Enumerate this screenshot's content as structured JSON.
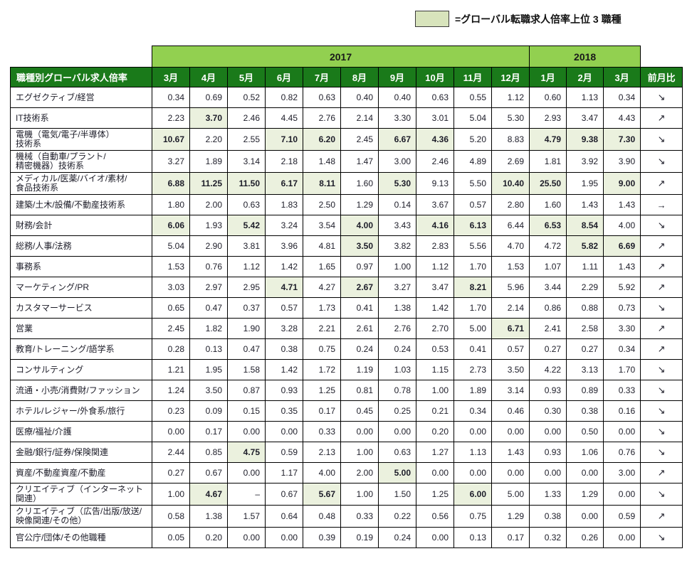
{
  "legend": {
    "label": "=グローバル転職求人倍率上位 3 職種"
  },
  "chart_data": {
    "type": "table",
    "title": "職種別グローバル求人倍率",
    "year_groups": [
      {
        "label": "2017",
        "cols": 10
      },
      {
        "label": "2018",
        "cols": 3
      }
    ],
    "month_headers": [
      "3月",
      "4月",
      "5月",
      "6月",
      "7月",
      "8月",
      "9月",
      "10月",
      "11月",
      "12月",
      "1月",
      "2月",
      "3月"
    ],
    "mom_header": "前月比",
    "rows": [
      {
        "label": "エグゼクティブ/経営",
        "values": [
          "0.34",
          "0.69",
          "0.52",
          "0.82",
          "0.63",
          "0.40",
          "0.40",
          "0.63",
          "0.55",
          "1.12",
          "0.60",
          "1.13",
          "0.34"
        ],
        "highlights": [],
        "trend": "↘"
      },
      {
        "label": "IT技術系",
        "values": [
          "2.23",
          "3.70",
          "2.46",
          "4.45",
          "2.76",
          "2.14",
          "3.30",
          "3.01",
          "5.04",
          "5.30",
          "2.93",
          "3.47",
          "4.43"
        ],
        "highlights": [
          1
        ],
        "trend": "↗"
      },
      {
        "label": "電機（電気/電子/半導体）\n技術系",
        "values": [
          "10.67",
          "2.20",
          "2.55",
          "7.10",
          "6.20",
          "2.45",
          "6.67",
          "4.36",
          "5.20",
          "8.83",
          "4.79",
          "9.38",
          "7.30"
        ],
        "highlights": [
          0,
          3,
          4,
          6,
          7,
          10,
          11,
          12
        ],
        "trend": "↘"
      },
      {
        "label": "機械（自動車/プラント/\n精密機器）技術系",
        "values": [
          "3.27",
          "1.89",
          "3.14",
          "2.18",
          "1.48",
          "1.47",
          "3.00",
          "2.46",
          "4.89",
          "2.69",
          "1.81",
          "3.92",
          "3.90"
        ],
        "highlights": [],
        "trend": "↘"
      },
      {
        "label": "メディカル/医薬/バイオ/素材/\n食品技術系",
        "values": [
          "6.88",
          "11.25",
          "11.50",
          "6.17",
          "8.11",
          "1.60",
          "5.30",
          "9.13",
          "5.50",
          "10.40",
          "25.50",
          "1.95",
          "9.00"
        ],
        "highlights": [
          0,
          1,
          2,
          3,
          4,
          6,
          9,
          10,
          12
        ],
        "trend": "↗"
      },
      {
        "label": "建築/土木/設備/不動産技術系",
        "values": [
          "1.80",
          "2.00",
          "0.63",
          "1.83",
          "2.50",
          "1.29",
          "0.14",
          "3.67",
          "0.57",
          "2.80",
          "1.60",
          "1.43",
          "1.43"
        ],
        "highlights": [],
        "trend": "→"
      },
      {
        "label": "財務/会計",
        "values": [
          "6.06",
          "1.93",
          "5.42",
          "3.24",
          "3.54",
          "4.00",
          "3.43",
          "4.16",
          "6.13",
          "6.44",
          "6.53",
          "8.54",
          "4.00"
        ],
        "highlights": [
          0,
          2,
          5,
          7,
          8,
          10,
          11
        ],
        "trend": "↘"
      },
      {
        "label": "総務/人事/法務",
        "values": [
          "5.04",
          "2.90",
          "3.81",
          "3.96",
          "4.81",
          "3.50",
          "3.82",
          "2.83",
          "5.56",
          "4.70",
          "4.72",
          "5.82",
          "6.69"
        ],
        "highlights": [
          5,
          11,
          12
        ],
        "trend": "↗"
      },
      {
        "label": "事務系",
        "values": [
          "1.53",
          "0.76",
          "1.12",
          "1.42",
          "1.65",
          "0.97",
          "1.00",
          "1.12",
          "1.70",
          "1.53",
          "1.07",
          "1.11",
          "1.43"
        ],
        "highlights": [],
        "trend": "↗"
      },
      {
        "label": "マーケティング/PR",
        "values": [
          "3.03",
          "2.97",
          "2.95",
          "4.71",
          "4.27",
          "2.67",
          "3.27",
          "3.47",
          "8.21",
          "5.96",
          "3.44",
          "2.29",
          "5.92"
        ],
        "highlights": [
          3,
          5,
          8
        ],
        "trend": "↗"
      },
      {
        "label": "カスタマーサービス",
        "values": [
          "0.65",
          "0.47",
          "0.37",
          "0.57",
          "1.73",
          "0.41",
          "1.38",
          "1.42",
          "1.70",
          "2.14",
          "0.86",
          "0.88",
          "0.73"
        ],
        "highlights": [],
        "trend": "↘"
      },
      {
        "label": "営業",
        "values": [
          "2.45",
          "1.82",
          "1.90",
          "3.28",
          "2.21",
          "2.61",
          "2.76",
          "2.70",
          "5.00",
          "6.71",
          "2.41",
          "2.58",
          "3.30"
        ],
        "highlights": [
          9
        ],
        "trend": "↗"
      },
      {
        "label": "教育/トレーニング/語学系",
        "values": [
          "0.28",
          "0.13",
          "0.47",
          "0.38",
          "0.75",
          "0.24",
          "0.24",
          "0.53",
          "0.41",
          "0.57",
          "0.27",
          "0.27",
          "0.34"
        ],
        "highlights": [],
        "trend": "↗"
      },
      {
        "label": "コンサルティング",
        "values": [
          "1.21",
          "1.95",
          "1.58",
          "1.42",
          "1.72",
          "1.19",
          "1.03",
          "1.15",
          "2.73",
          "3.50",
          "4.22",
          "3.13",
          "1.70"
        ],
        "highlights": [],
        "trend": "↘"
      },
      {
        "label": "流通・小売/消費財/ファッション",
        "values": [
          "1.24",
          "3.50",
          "0.87",
          "0.93",
          "1.25",
          "0.81",
          "0.78",
          "1.00",
          "1.89",
          "3.14",
          "0.93",
          "0.89",
          "0.33"
        ],
        "highlights": [],
        "trend": "↘"
      },
      {
        "label": "ホテル/レジャー/外食系/旅行",
        "values": [
          "0.23",
          "0.09",
          "0.15",
          "0.35",
          "0.17",
          "0.45",
          "0.25",
          "0.21",
          "0.34",
          "0.46",
          "0.30",
          "0.38",
          "0.16"
        ],
        "highlights": [],
        "trend": "↘"
      },
      {
        "label": "医療/福祉/介護",
        "values": [
          "0.00",
          "0.17",
          "0.00",
          "0.00",
          "0.33",
          "0.00",
          "0.00",
          "0.20",
          "0.00",
          "0.00",
          "0.00",
          "0.50",
          "0.00"
        ],
        "highlights": [],
        "trend": "↘"
      },
      {
        "label": "金融/銀行/証券/保険関連",
        "values": [
          "2.44",
          "0.85",
          "4.75",
          "0.59",
          "2.13",
          "1.00",
          "0.63",
          "1.27",
          "1.13",
          "1.43",
          "0.93",
          "1.06",
          "0.76"
        ],
        "highlights": [
          2
        ],
        "trend": "↘"
      },
      {
        "label": "資産/不動産資産/不動産",
        "values": [
          "0.27",
          "0.67",
          "0.00",
          "1.17",
          "4.00",
          "2.00",
          "5.00",
          "0.00",
          "0.00",
          "0.00",
          "0.00",
          "0.00",
          "3.00"
        ],
        "highlights": [
          6
        ],
        "trend": "↗"
      },
      {
        "label": "クリエイティブ（インターネット\n関連）",
        "values": [
          "1.00",
          "4.67",
          "–",
          "0.67",
          "5.67",
          "1.00",
          "1.50",
          "1.25",
          "6.00",
          "5.00",
          "1.33",
          "1.29",
          "0.00"
        ],
        "highlights": [
          1,
          4,
          8
        ],
        "trend": "↘"
      },
      {
        "label": "クリエイティブ（広告/出版/放送/\n映像関連/その他）",
        "values": [
          "0.58",
          "1.38",
          "1.57",
          "0.64",
          "0.48",
          "0.33",
          "0.22",
          "0.56",
          "0.75",
          "1.29",
          "0.38",
          "0.00",
          "0.59"
        ],
        "highlights": [],
        "trend": "↗"
      },
      {
        "label": "官公庁/団体/その他職種",
        "values": [
          "0.05",
          "0.20",
          "0.00",
          "0.00",
          "0.39",
          "0.19",
          "0.24",
          "0.00",
          "0.13",
          "0.17",
          "0.32",
          "0.26",
          "0.00"
        ],
        "highlights": [],
        "trend": "↘"
      }
    ]
  },
  "colors": {
    "header_green": "#1a7a1a",
    "year_band_green": "#92d050",
    "highlight_green": "#ebf1de",
    "legend_swatch_green": "#d8e4bc",
    "grid_black": "#000000",
    "text_dark": "#1c1c28",
    "header_text_white": "#ffffff"
  }
}
